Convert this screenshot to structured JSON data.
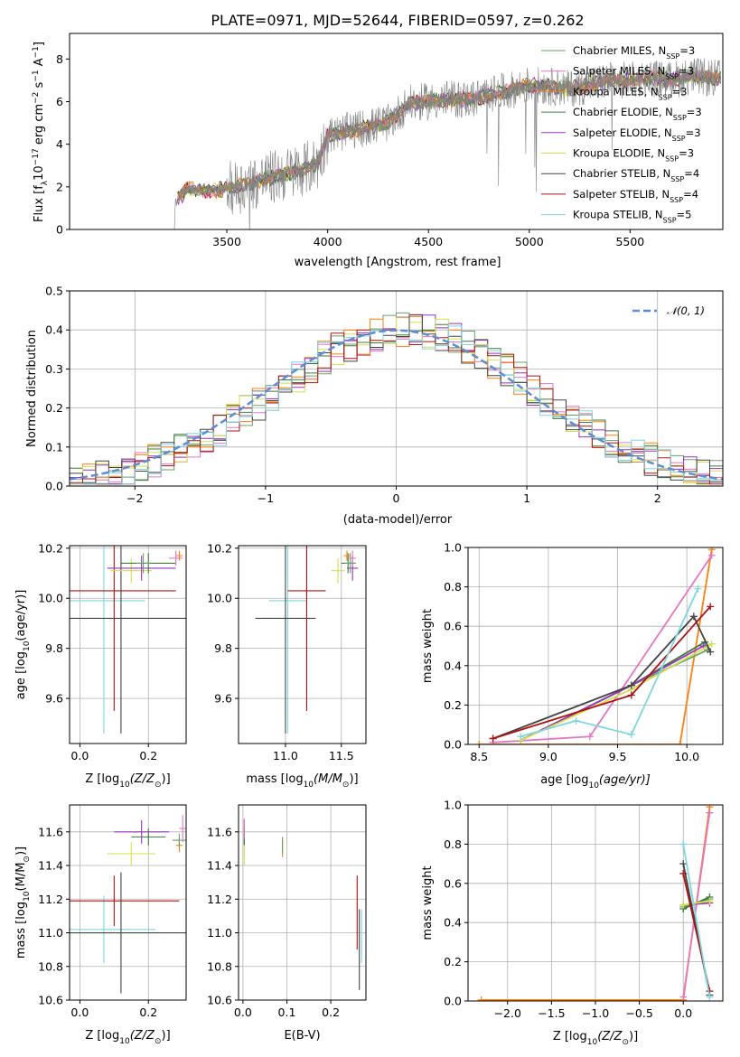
{
  "figure_title": "PLATE=0971, MJD=52644, FIBERID=0597, z=0.262",
  "colors": {
    "Chabrier MILES": "#6aa06a",
    "Salpeter MILES": "#e377c2",
    "Kroupa MILES": "#ff7f0e",
    "Chabrier ELODIE": "#3a7d3a",
    "Salpeter ELODIE": "#9b30c0",
    "Kroupa ELODIE": "#d4e04a",
    "Chabrier STELIB": "#444444",
    "Salpeter STELIB": "#b01010",
    "Kroupa STELIB": "#7fd6df",
    "gauss": "#5b8dd9",
    "data": "#808080"
  },
  "legend_spectrum": [
    {
      "base": "Chabrier MILES",
      "sub": "SSP",
      "n": "=3"
    },
    {
      "base": "Salpeter MILES",
      "sub": "SSP",
      "n": "=3"
    },
    {
      "base": "Kroupa MILES",
      "sub": "SSP",
      "n": "=3"
    },
    {
      "base": "Chabrier ELODIE",
      "sub": "SSP",
      "n": "=3"
    },
    {
      "base": "Salpeter ELODIE",
      "sub": "SSP",
      "n": "=3"
    },
    {
      "base": "Kroupa ELODIE",
      "sub": "SSP",
      "n": "=3"
    },
    {
      "base": "Chabrier STELIB",
      "sub": "SSP",
      "n": "=4"
    },
    {
      "base": "Salpeter STELIB",
      "sub": "SSP",
      "n": "=4"
    },
    {
      "base": "Kroupa STELIB",
      "sub": "SSP",
      "n": "=5"
    }
  ],
  "chart_data": [
    {
      "id": "spectrum",
      "type": "line",
      "xlabel": "wavelength [Angstrom, rest frame]",
      "ylabel": "Flux [f",
      "ylabel_sub": "λ",
      "ylabel_unit": "10",
      "ylabel_exp1": "−17",
      "ylabel_mid": " erg cm",
      "ylabel_exp2": "−2",
      "ylabel_mid2": " s",
      "ylabel_exp3": "−1",
      "ylabel_end": " A",
      "ylabel_exp4": "−1",
      "ylabel_close": "]",
      "xlim": [
        2720,
        5960
      ],
      "ylim": [
        0,
        9.2
      ],
      "xticks": [
        3500,
        4000,
        4500,
        5000,
        5500
      ],
      "yticks": [
        0,
        2,
        4,
        6,
        8
      ],
      "continuum": {
        "x": [
          3250,
          3300,
          3400,
          3500,
          3600,
          3700,
          3800,
          3900,
          3950,
          4000,
          4100,
          4200,
          4300,
          4400,
          4500,
          4600,
          4700,
          4800,
          4900,
          5000,
          5100,
          5200,
          5300,
          5400,
          5500,
          5600,
          5700,
          5800,
          5900
        ],
        "y": [
          1.3,
          1.9,
          1.8,
          1.9,
          2.1,
          2.4,
          2.6,
          2.9,
          3.1,
          4.4,
          4.6,
          4.8,
          5.0,
          5.9,
          6.0,
          6.1,
          6.1,
          6.3,
          6.5,
          6.8,
          6.7,
          6.6,
          6.8,
          7.0,
          7.0,
          7.1,
          7.0,
          7.2,
          7.1
        ]
      }
    },
    {
      "id": "residuals",
      "type": "step",
      "xlabel": "(data-model)/error",
      "ylabel": "Normed distribution",
      "xlim": [
        -2.5,
        2.5
      ],
      "ylim": [
        0,
        0.5
      ],
      "xticks": [
        -2,
        -1,
        0,
        1,
        2
      ],
      "yticks": [
        0,
        0.1,
        0.2,
        0.3,
        0.4,
        0.5
      ],
      "gauss_label": "𝒩(0, 1)"
    },
    {
      "id": "age_vs_Z",
      "type": "errorbar",
      "xlabel": "Z [log",
      "xlabel_sub": "10",
      "xlabel_end": "(Z/Z",
      "xlabel_sun": "⊙",
      "xlabel_close": ")]",
      "ylabel": "age  [log",
      "ylabel_sub": "10",
      "ylabel_end": "(age/yr)]",
      "xlim": [
        -0.03,
        0.31
      ],
      "ylim": [
        9.42,
        10.21
      ],
      "xticks": [
        0.0,
        0.2
      ],
      "yticks": [
        9.6,
        9.8,
        10.0,
        10.2
      ],
      "points": [
        {
          "m": "Chabrier MILES",
          "x": 0.185,
          "y": 10.14,
          "xe": 0.02,
          "ye": 0.04
        },
        {
          "m": "Salpeter MILES",
          "x": 0.28,
          "y": 10.16,
          "xe": 0.02,
          "ye": 0.03
        },
        {
          "m": "Kroupa MILES",
          "x": 0.29,
          "y": 10.17,
          "xe": 0.01,
          "ye": 0.02
        },
        {
          "m": "Chabrier ELODIE",
          "x": 0.2,
          "y": 10.14,
          "xe": 0.08,
          "ye": 0.04
        },
        {
          "m": "Salpeter ELODIE",
          "x": 0.18,
          "y": 10.12,
          "xe": 0.1,
          "ye": 0.05
        },
        {
          "m": "Kroupa ELODIE",
          "x": 0.15,
          "y": 10.11,
          "xe": 0.06,
          "ye": 0.05
        },
        {
          "m": "Chabrier STELIB",
          "x": 0.12,
          "y": 9.92,
          "xe": 0.22,
          "ye": 0.46
        },
        {
          "m": "Salpeter STELIB",
          "x": 0.1,
          "y": 10.03,
          "xe": 0.18,
          "ye": 0.48
        },
        {
          "m": "Kroupa STELIB",
          "x": 0.07,
          "y": 9.99,
          "xe": 0.12,
          "ye": 0.53
        }
      ]
    },
    {
      "id": "age_vs_mass",
      "type": "errorbar",
      "xlabel": "mass [log",
      "xlabel_sub": "10",
      "xlabel_end": "(M/M",
      "xlabel_sun": "⊙",
      "xlabel_close": ")]",
      "xlim": [
        10.58,
        11.72
      ],
      "ylim": [
        9.42,
        10.21
      ],
      "xticks": [
        11.0,
        11.5
      ],
      "yticks": [
        9.6,
        9.8,
        10.0,
        10.2
      ],
      "points": [
        {
          "m": "Chabrier MILES",
          "x": 11.58,
          "y": 10.14,
          "xe": 0.05,
          "ye": 0.04
        },
        {
          "m": "Salpeter MILES",
          "x": 11.6,
          "y": 10.16,
          "xe": 0.03,
          "ye": 0.03
        },
        {
          "m": "Kroupa MILES",
          "x": 11.55,
          "y": 10.17,
          "xe": 0.03,
          "ye": 0.02
        },
        {
          "m": "Chabrier ELODIE",
          "x": 11.56,
          "y": 10.14,
          "xe": 0.06,
          "ye": 0.04
        },
        {
          "m": "Salpeter ELODIE",
          "x": 11.6,
          "y": 10.12,
          "xe": 0.05,
          "ye": 0.05
        },
        {
          "m": "Kroupa ELODIE",
          "x": 11.47,
          "y": 10.11,
          "xe": 0.06,
          "ye": 0.05
        },
        {
          "m": "Chabrier STELIB",
          "x": 11.0,
          "y": 9.92,
          "xe": 0.27,
          "ye": 0.46
        },
        {
          "m": "Salpeter STELIB",
          "x": 11.19,
          "y": 10.03,
          "xe": 0.17,
          "ye": 0.48
        },
        {
          "m": "Kroupa STELIB",
          "x": 11.02,
          "y": 9.99,
          "xe": 0.17,
          "ye": 0.53
        }
      ]
    },
    {
      "id": "weight_vs_age",
      "type": "line",
      "xlabel": "age  [log",
      "xlabel_sub": "10",
      "xlabel_end": "(age/yr)]",
      "ylabel": "mass weight",
      "xlim": [
        8.42,
        10.26
      ],
      "ylim": [
        0,
        1.0
      ],
      "xticks": [
        8.5,
        9.0,
        9.5,
        10.0
      ],
      "yticks": [
        0.0,
        0.2,
        0.4,
        0.6,
        0.8,
        1.0
      ],
      "series": [
        {
          "m": "Kroupa MILES",
          "x": [
            8.5,
            9.95,
            10.18
          ],
          "y": [
            0.0,
            0.0,
            0.99
          ]
        },
        {
          "m": "Salpeter MILES",
          "x": [
            8.6,
            9.3,
            10.18
          ],
          "y": [
            0.01,
            0.04,
            0.96
          ]
        },
        {
          "m": "Chabrier MILES",
          "x": [
            8.8,
            9.6,
            10.15
          ],
          "y": [
            0.02,
            0.3,
            0.48
          ]
        },
        {
          "m": "Chabrier ELODIE",
          "x": [
            8.8,
            9.6,
            10.13
          ],
          "y": [
            0.02,
            0.3,
            0.52
          ]
        },
        {
          "m": "Salpeter ELODIE",
          "x": [
            8.8,
            9.6,
            10.12
          ],
          "y": [
            0.02,
            0.3,
            0.5
          ]
        },
        {
          "m": "Kroupa ELODIE",
          "x": [
            8.8,
            9.6,
            10.18
          ],
          "y": [
            0.02,
            0.28,
            0.51
          ]
        },
        {
          "m": "Chabrier STELIB",
          "x": [
            8.6,
            9.6,
            10.05,
            10.17
          ],
          "y": [
            0.03,
            0.3,
            0.65,
            0.47
          ]
        },
        {
          "m": "Salpeter STELIB",
          "x": [
            8.6,
            9.6,
            10.17
          ],
          "y": [
            0.03,
            0.25,
            0.7
          ]
        },
        {
          "m": "Kroupa STELIB",
          "x": [
            8.8,
            9.2,
            9.6,
            10.08
          ],
          "y": [
            0.04,
            0.12,
            0.05,
            0.79
          ]
        }
      ]
    },
    {
      "id": "mass_vs_Z",
      "type": "errorbar",
      "xlabel": "Z [log",
      "xlabel_sub": "10",
      "xlabel_end": "(Z/Z",
      "xlabel_sun": "⊙",
      "xlabel_close": ")]",
      "ylabel": "mass [log",
      "ylabel_sub": "10",
      "ylabel_end": "(M/M",
      "ylabel_sun": "⊙",
      "ylabel_close": ")]",
      "xlim": [
        -0.03,
        0.31
      ],
      "ylim": [
        10.6,
        11.76
      ],
      "xticks": [
        0.0,
        0.2
      ],
      "yticks": [
        10.6,
        10.8,
        11.0,
        11.2,
        11.4,
        11.6
      ],
      "points": [
        {
          "m": "Chabrier MILES",
          "x": 0.29,
          "y": 11.55,
          "xe": 0.02,
          "ye": 0.04
        },
        {
          "m": "Salpeter MILES",
          "x": 0.3,
          "y": 11.62,
          "xe": 0.01,
          "ye": 0.08
        },
        {
          "m": "Kroupa MILES",
          "x": 0.29,
          "y": 11.52,
          "xe": 0.01,
          "ye": 0.04
        },
        {
          "m": "Chabrier ELODIE",
          "x": 0.2,
          "y": 11.57,
          "xe": 0.05,
          "ye": 0.05
        },
        {
          "m": "Salpeter ELODIE",
          "x": 0.18,
          "y": 11.6,
          "xe": 0.08,
          "ye": 0.07
        },
        {
          "m": "Kroupa ELODIE",
          "x": 0.15,
          "y": 11.47,
          "xe": 0.07,
          "ye": 0.07
        },
        {
          "m": "Chabrier STELIB",
          "x": 0.12,
          "y": 11.0,
          "xe": 0.19,
          "ye": 0.36
        },
        {
          "m": "Salpeter STELIB",
          "x": 0.1,
          "y": 11.19,
          "xe": 0.19,
          "ye": 0.15
        },
        {
          "m": "Kroupa STELIB",
          "x": 0.07,
          "y": 11.02,
          "xe": 0.15,
          "ye": 0.2
        }
      ]
    },
    {
      "id": "mass_vs_EBV",
      "type": "errorbar",
      "xlabel": "E(B-V)",
      "xlim": [
        -0.01,
        0.28
      ],
      "ylim": [
        10.6,
        11.76
      ],
      "xticks": [
        0.0,
        0.1,
        0.2
      ],
      "yticks": [
        10.6,
        10.8,
        11.0,
        11.2,
        11.4,
        11.6
      ],
      "points": [
        {
          "m": "Chabrier MILES",
          "x": 0.09,
          "y": 11.52,
          "xe": 0.0,
          "ye": 0.05
        },
        {
          "m": "Salpeter MILES",
          "x": 0.003,
          "y": 11.62,
          "xe": 0.0,
          "ye": 0.06
        },
        {
          "m": "Kroupa MILES",
          "x": 0.09,
          "y": 11.5,
          "xe": 0.0,
          "ye": 0.05
        },
        {
          "m": "Chabrier ELODIE",
          "x": 0.003,
          "y": 11.57,
          "xe": 0.0,
          "ye": 0.05
        },
        {
          "m": "Salpeter ELODIE",
          "x": 0.003,
          "y": 11.6,
          "xe": 0.0,
          "ye": 0.07
        },
        {
          "m": "Kroupa ELODIE",
          "x": 0.003,
          "y": 11.47,
          "xe": 0.0,
          "ye": 0.07
        },
        {
          "m": "Chabrier STELIB",
          "x": 0.265,
          "y": 10.9,
          "xe": 0.0,
          "ye": 0.24
        },
        {
          "m": "Salpeter STELIB",
          "x": 0.26,
          "y": 11.12,
          "xe": 0.0,
          "ye": 0.22
        },
        {
          "m": "Kroupa STELIB",
          "x": 0.27,
          "y": 10.98,
          "xe": 0.0,
          "ye": 0.16
        }
      ]
    },
    {
      "id": "weight_vs_Z",
      "type": "line",
      "xlabel": "Z [log",
      "xlabel_sub": "10",
      "xlabel_end": "(Z/Z",
      "xlabel_sun": "⊙",
      "xlabel_close": ")]",
      "ylabel": "mass weight",
      "xlim": [
        -2.45,
        0.45
      ],
      "ylim": [
        0,
        1.0
      ],
      "xticks": [
        -2.0,
        -1.5,
        -1.0,
        -0.5,
        0.0
      ],
      "yticks": [
        0.0,
        0.2,
        0.4,
        0.6,
        0.8,
        1.0
      ],
      "series": [
        {
          "m": "Kroupa MILES",
          "x": [
            -2.3,
            0.0,
            0.3
          ],
          "y": [
            0.005,
            0.005,
            0.99
          ]
        },
        {
          "m": "Salpeter MILES",
          "x": [
            0.0,
            0.3
          ],
          "y": [
            0.02,
            0.96
          ]
        },
        {
          "m": "Chabrier MILES",
          "x": [
            0.0,
            0.3
          ],
          "y": [
            0.48,
            0.52
          ]
        },
        {
          "m": "Chabrier ELODIE",
          "x": [
            0.0,
            0.3
          ],
          "y": [
            0.47,
            0.53
          ]
        },
        {
          "m": "Salpeter ELODIE",
          "x": [
            0.0,
            0.3
          ],
          "y": [
            0.49,
            0.5
          ]
        },
        {
          "m": "Kroupa ELODIE",
          "x": [
            0.0,
            0.3
          ],
          "y": [
            0.49,
            0.51
          ]
        },
        {
          "m": "Chabrier STELIB",
          "x": [
            0.0,
            0.3
          ],
          "y": [
            0.7,
            0.03
          ]
        },
        {
          "m": "Salpeter STELIB",
          "x": [
            0.0,
            0.3
          ],
          "y": [
            0.65,
            0.05
          ]
        },
        {
          "m": "Kroupa STELIB",
          "x": [
            0.0,
            0.3
          ],
          "y": [
            0.8,
            0.02
          ]
        }
      ]
    }
  ]
}
